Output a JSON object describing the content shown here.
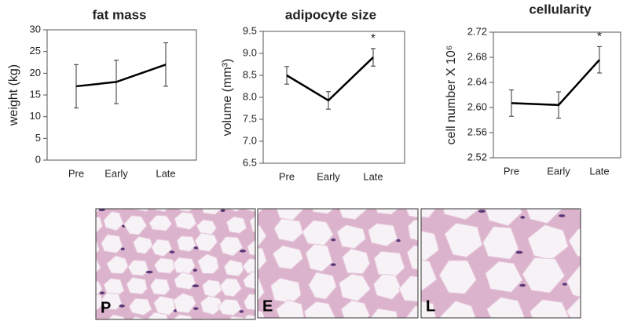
{
  "chart_data": [
    {
      "type": "line",
      "title": "fat mass",
      "y_label": "weight (kg)",
      "categories": [
        "Pre",
        "Early",
        "Late"
      ],
      "values": [
        17,
        18,
        22
      ],
      "errors": [
        5,
        5,
        5
      ],
      "color": "#000000",
      "ylim": [
        0,
        30
      ],
      "yticks": [
        0,
        5,
        10,
        15,
        20,
        25,
        30
      ]
    },
    {
      "type": "line",
      "title": "adipocyte size",
      "y_label": "volume (mm³)",
      "categories": [
        "Pre",
        "Early",
        "Late"
      ],
      "values": [
        8.5,
        7.93,
        8.91
      ],
      "errors": [
        0.2,
        0.2,
        0.2
      ],
      "color": "#000000",
      "ylim": [
        6.5,
        9.5
      ],
      "yticks": [
        6.5,
        {
          "value": 7,
          "label": "7.0"
        },
        7.5,
        {
          "value": 8,
          "label": "8.0"
        },
        8.5,
        {
          "value": 9,
          "label": "9.0"
        },
        9.5
      ],
      "annotations": [
        {
          "text": "*",
          "x": "Late"
        }
      ]
    },
    {
      "type": "line",
      "title": "cellularity",
      "y_label": "cell number X 10⁶",
      "categories": [
        "Pre",
        "Early",
        "Late"
      ],
      "values": [
        2.607,
        2.604,
        2.676
      ],
      "errors": [
        0.021,
        0.021,
        0.021
      ],
      "color": "#000000",
      "ylim": [
        2.52,
        2.72
      ],
      "yticks": [
        2.52,
        2.56,
        {
          "value": 2.6,
          "label": "2.60"
        },
        2.64,
        2.68,
        2.72
      ],
      "annotations": [
        {
          "text": "*",
          "x": "Late"
        }
      ]
    }
  ],
  "panels": [
    {
      "label": "P"
    },
    {
      "label": "E"
    },
    {
      "label": "L"
    }
  ]
}
